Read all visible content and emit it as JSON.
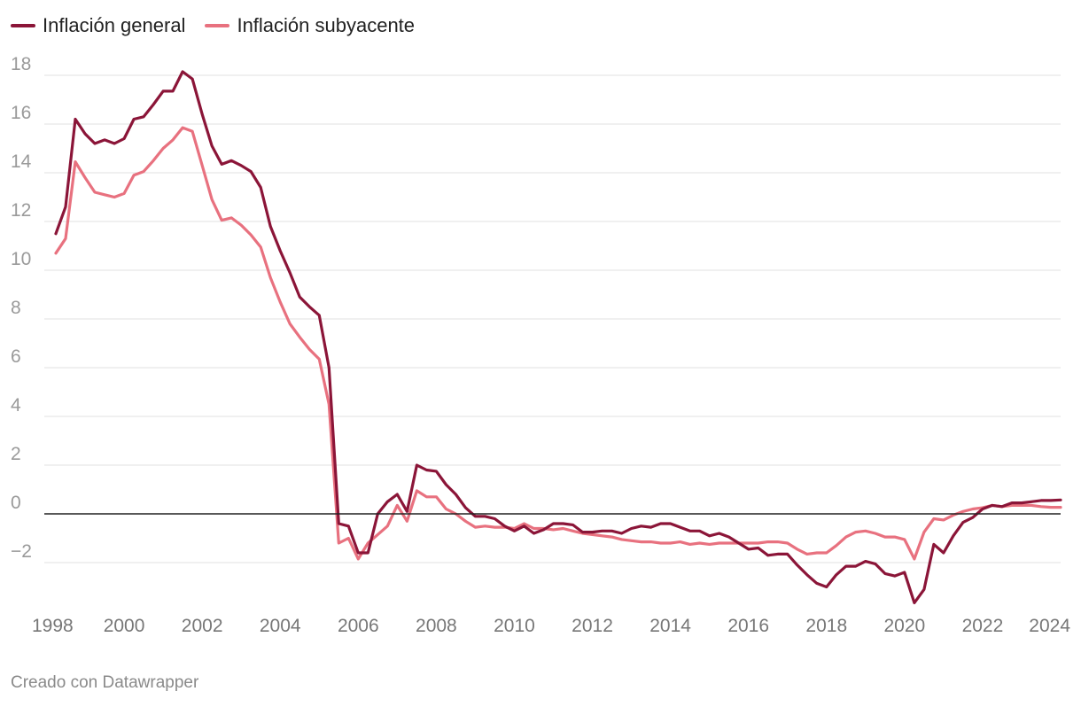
{
  "colors": {
    "general": "#8b1538",
    "core": "#e8717f",
    "grid": "#e2e2e2",
    "zero": "#222222"
  },
  "legend": {
    "general": "Inflación general",
    "core": "Inflación subyacente"
  },
  "footer": {
    "credit": "Creado con Datawrapper"
  },
  "chart_data": {
    "type": "line",
    "title": "",
    "xlabel": "",
    "ylabel": "",
    "xlim": [
      1998,
      2024
    ],
    "ylim": [
      -4,
      19
    ],
    "y_ticks": [
      -2,
      0,
      2,
      4,
      6,
      8,
      10,
      12,
      14,
      16,
      18
    ],
    "y_tick_labels": [
      "−2",
      "0",
      "2",
      "4",
      "6",
      "8",
      "10",
      "12",
      "14",
      "16",
      "18"
    ],
    "x_ticks": [
      1998,
      2000,
      2002,
      2004,
      2006,
      2008,
      2010,
      2012,
      2014,
      2016,
      2018,
      2020,
      2022,
      2024
    ],
    "grid": true,
    "legend_position": "top-left",
    "series": [
      {
        "name": "Inflación general",
        "color": "#8b1538",
        "x": [
          1998.25,
          1998.5,
          1998.75,
          1999.0,
          1999.25,
          1999.5,
          1999.75,
          2000.0,
          2000.25,
          2000.5,
          2000.75,
          2001.0,
          2001.25,
          2001.5,
          2001.75,
          2002.0,
          2002.25,
          2002.5,
          2002.75,
          2003.0,
          2003.25,
          2003.5,
          2003.75,
          2004.0,
          2004.25,
          2004.5,
          2004.75,
          2005.0,
          2005.25,
          2005.5,
          2005.75,
          2006.0,
          2006.25,
          2006.5,
          2006.75,
          2007.0,
          2007.25,
          2007.5,
          2007.75,
          2008.0,
          2008.25,
          2008.5,
          2008.75,
          2009.0,
          2009.25,
          2009.5,
          2009.75,
          2010.0,
          2010.25,
          2010.5,
          2010.75,
          2011.0,
          2011.25,
          2011.5,
          2011.75,
          2012.0,
          2012.25,
          2012.5,
          2012.75,
          2013.0,
          2013.25,
          2013.5,
          2013.75,
          2014.0,
          2014.25,
          2014.5,
          2014.75,
          2015.0,
          2015.25,
          2015.5,
          2015.75,
          2016.0,
          2016.25,
          2016.5,
          2016.75,
          2017.0,
          2017.25,
          2017.5,
          2017.75,
          2018.0,
          2018.25,
          2018.5,
          2018.75,
          2019.0,
          2019.25,
          2019.5,
          2019.75,
          2020.0,
          2020.25,
          2020.5,
          2020.75,
          2021.0,
          2021.25,
          2021.5,
          2021.75,
          2022.0,
          2022.25,
          2022.5,
          2022.75,
          2023.0,
          2023.25,
          2023.5,
          2023.75,
          2024.0
        ],
        "values": [
          11.5,
          12.6,
          16.2,
          15.6,
          15.2,
          15.35,
          15.2,
          15.4,
          16.2,
          16.3,
          16.8,
          17.35,
          17.35,
          18.15,
          17.85,
          16.4,
          15.1,
          14.35,
          14.5,
          14.3,
          14.05,
          13.4,
          11.8,
          10.8,
          9.9,
          8.9,
          8.5,
          8.15,
          6.0,
          -0.4,
          -0.5,
          -1.6,
          -1.6,
          0.0,
          0.5,
          0.8,
          0.1,
          2.0,
          1.8,
          1.75,
          1.2,
          0.8,
          0.25,
          -0.1,
          -0.1,
          -0.2,
          -0.5,
          -0.7,
          -0.5,
          -0.8,
          -0.65,
          -0.4,
          -0.4,
          -0.45,
          -0.75,
          -0.75,
          -0.7,
          -0.7,
          -0.8,
          -0.6,
          -0.5,
          -0.55,
          -0.4,
          -0.4,
          -0.55,
          -0.7,
          -0.7,
          -0.9,
          -0.8,
          -0.95,
          -1.2,
          -1.45,
          -1.4,
          -1.7,
          -1.65,
          -1.65,
          -2.1,
          -2.5,
          -2.85,
          -3.0,
          -2.5,
          -2.15,
          -2.15,
          -1.95,
          -2.05,
          -2.45,
          -2.55,
          -2.4,
          -3.65,
          -3.1,
          -1.25,
          -1.6,
          -0.9,
          -0.35,
          -0.15,
          0.2,
          0.35,
          0.3,
          0.45,
          0.45,
          0.5,
          0.55,
          0.55,
          0.57
        ]
      },
      {
        "name": "Inflación subyacente",
        "color": "#e8717f",
        "x": [
          1998.25,
          1998.5,
          1998.75,
          1999.0,
          1999.25,
          1999.5,
          1999.75,
          2000.0,
          2000.25,
          2000.5,
          2000.75,
          2001.0,
          2001.25,
          2001.5,
          2001.75,
          2002.0,
          2002.25,
          2002.5,
          2002.75,
          2003.0,
          2003.25,
          2003.5,
          2003.75,
          2004.0,
          2004.25,
          2004.5,
          2004.75,
          2005.0,
          2005.25,
          2005.5,
          2005.75,
          2006.0,
          2006.25,
          2006.5,
          2006.75,
          2007.0,
          2007.25,
          2007.5,
          2007.75,
          2008.0,
          2008.25,
          2008.5,
          2008.75,
          2009.0,
          2009.25,
          2009.5,
          2009.75,
          2010.0,
          2010.25,
          2010.5,
          2010.75,
          2011.0,
          2011.25,
          2011.5,
          2011.75,
          2012.0,
          2012.25,
          2012.5,
          2012.75,
          2013.0,
          2013.25,
          2013.5,
          2013.75,
          2014.0,
          2014.25,
          2014.5,
          2014.75,
          2015.0,
          2015.25,
          2015.5,
          2015.75,
          2016.0,
          2016.25,
          2016.5,
          2016.75,
          2017.0,
          2017.25,
          2017.5,
          2017.75,
          2018.0,
          2018.25,
          2018.5,
          2018.75,
          2019.0,
          2019.25,
          2019.5,
          2019.75,
          2020.0,
          2020.25,
          2020.5,
          2020.75,
          2021.0,
          2021.25,
          2021.5,
          2021.75,
          2022.0,
          2022.25,
          2022.5,
          2022.75,
          2023.0,
          2023.25,
          2023.5,
          2023.75,
          2024.0
        ],
        "values": [
          10.7,
          11.3,
          14.45,
          13.8,
          13.2,
          13.1,
          13.0,
          13.15,
          13.9,
          14.05,
          14.5,
          15.0,
          15.35,
          15.85,
          15.7,
          14.3,
          12.9,
          12.05,
          12.15,
          11.85,
          11.45,
          10.95,
          9.7,
          8.7,
          7.8,
          7.25,
          6.75,
          6.35,
          4.5,
          -1.2,
          -1.0,
          -1.85,
          -1.2,
          -0.85,
          -0.5,
          0.35,
          -0.3,
          0.95,
          0.7,
          0.7,
          0.2,
          0.0,
          -0.3,
          -0.55,
          -0.5,
          -0.55,
          -0.55,
          -0.6,
          -0.4,
          -0.6,
          -0.6,
          -0.65,
          -0.6,
          -0.7,
          -0.8,
          -0.85,
          -0.9,
          -0.95,
          -1.05,
          -1.1,
          -1.15,
          -1.15,
          -1.2,
          -1.2,
          -1.15,
          -1.25,
          -1.2,
          -1.25,
          -1.2,
          -1.2,
          -1.2,
          -1.2,
          -1.2,
          -1.15,
          -1.15,
          -1.2,
          -1.45,
          -1.65,
          -1.6,
          -1.6,
          -1.3,
          -0.95,
          -0.75,
          -0.7,
          -0.8,
          -0.95,
          -0.95,
          -1.05,
          -1.85,
          -0.75,
          -0.2,
          -0.25,
          -0.05,
          0.1,
          0.2,
          0.25,
          0.35,
          0.3,
          0.35,
          0.35,
          0.35,
          0.3,
          0.27,
          0.27
        ]
      }
    ]
  }
}
